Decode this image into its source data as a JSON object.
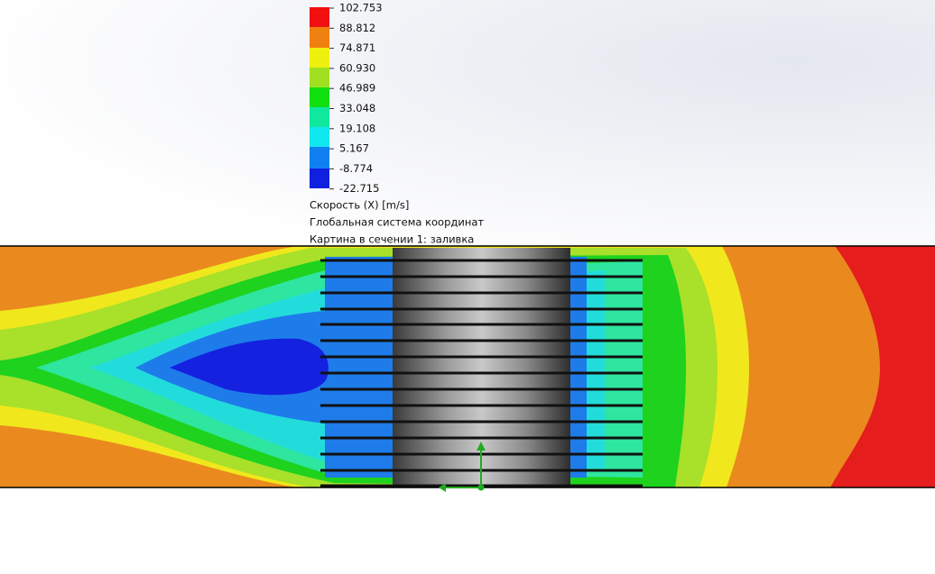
{
  "legend": {
    "labels": [
      "102.753",
      "88.812",
      "74.871",
      "60.930",
      "46.989",
      "33.048",
      "19.108",
      "5.167",
      "-8.774",
      "-22.715"
    ],
    "title": "Скорость (X) [m/s]",
    "coordinate_system": "Глобальная система координат",
    "plot_name": "Картина в сечении 1: заливка"
  }
}
